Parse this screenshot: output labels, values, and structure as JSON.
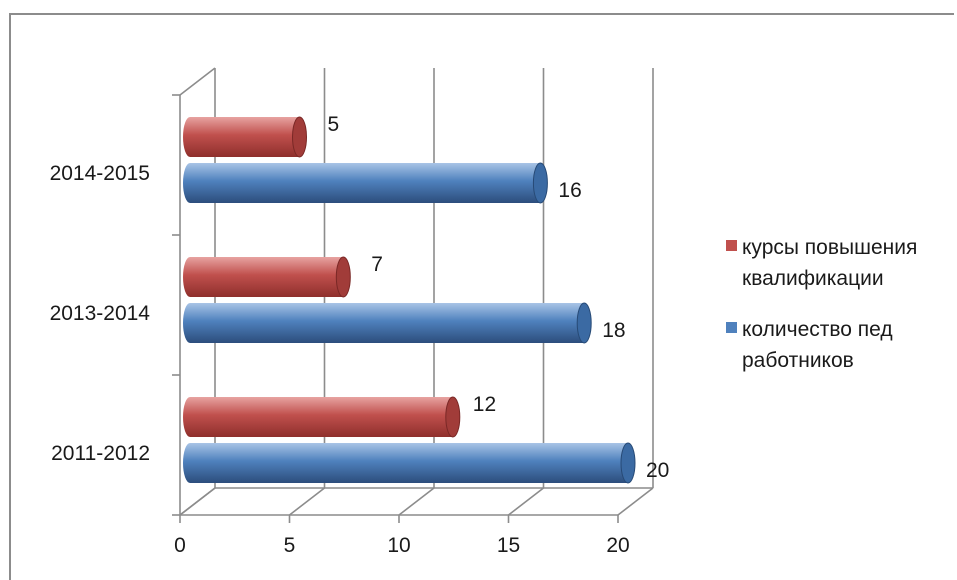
{
  "chart_data": {
    "type": "bar",
    "orientation": "horizontal",
    "style": "3d-cylinder",
    "categories": [
      "2011-2012",
      "2013-2014",
      "2014-2015"
    ],
    "series": [
      {
        "name": "курсы повышения квалификации",
        "values": [
          12,
          7,
          5
        ],
        "color": "#c0504d"
      },
      {
        "name": "количество пед работников",
        "values": [
          20,
          18,
          16
        ],
        "color": "#4f81bd"
      }
    ],
    "xlim": [
      0,
      20
    ],
    "xticks": [
      "0",
      "5",
      "10",
      "15",
      "20"
    ],
    "grid": true,
    "legend_position": "right",
    "legend": [
      {
        "lines": [
          "курсы повышения",
          "квалификации"
        ],
        "color": "#c0504d"
      },
      {
        "lines": [
          "количество пед",
          "работников"
        ],
        "color": "#4f81bd"
      }
    ]
  }
}
